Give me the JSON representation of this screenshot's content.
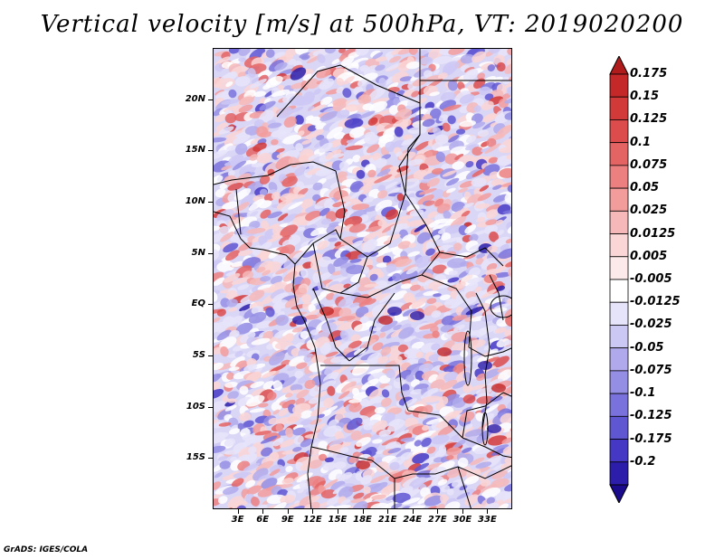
{
  "title": "Vertical velocity [m/s] at 500hPa, VT: 2019020200",
  "footer": "GrADS: IGES/COLA",
  "map": {
    "lat_range": [
      -20,
      25
    ],
    "lon_range": [
      0,
      36
    ],
    "lat_labels": [
      "20N",
      "15N",
      "10N",
      "5N",
      "EQ",
      "5S",
      "10S",
      "15S"
    ],
    "lat_values": [
      20,
      15,
      10,
      5,
      0,
      -5,
      -10,
      -15
    ],
    "lon_labels": [
      "3E",
      "6E",
      "9E",
      "12E",
      "15E",
      "18E",
      "21E",
      "24E",
      "27E",
      "30E",
      "33E"
    ],
    "lon_values": [
      3,
      6,
      9,
      12,
      15,
      18,
      21,
      24,
      27,
      30,
      33
    ],
    "field": "vertical velocity"
  },
  "colorbar": {
    "labels": [
      "0.175",
      "0.15",
      "0.125",
      "0.1",
      "0.075",
      "0.05",
      "0.025",
      "0.0125",
      "0.005",
      "-0.005",
      "-0.0125",
      "-0.025",
      "-0.05",
      "-0.075",
      "-0.1",
      "-0.125",
      "-0.175",
      "-0.2"
    ],
    "colors": [
      "#b01c1c",
      "#c42828",
      "#d23a3a",
      "#dc4c4c",
      "#e46464",
      "#ec8080",
      "#f29c9c",
      "#f6b8b8",
      "#fad6d6",
      "#fceaea",
      "#ffffff",
      "#e6e4fa",
      "#ccc8f4",
      "#b0aaec",
      "#948ee4",
      "#7a72dc",
      "#5f56d2",
      "#4538c4",
      "#2c1eaa",
      "#1a0a8c"
    ]
  }
}
